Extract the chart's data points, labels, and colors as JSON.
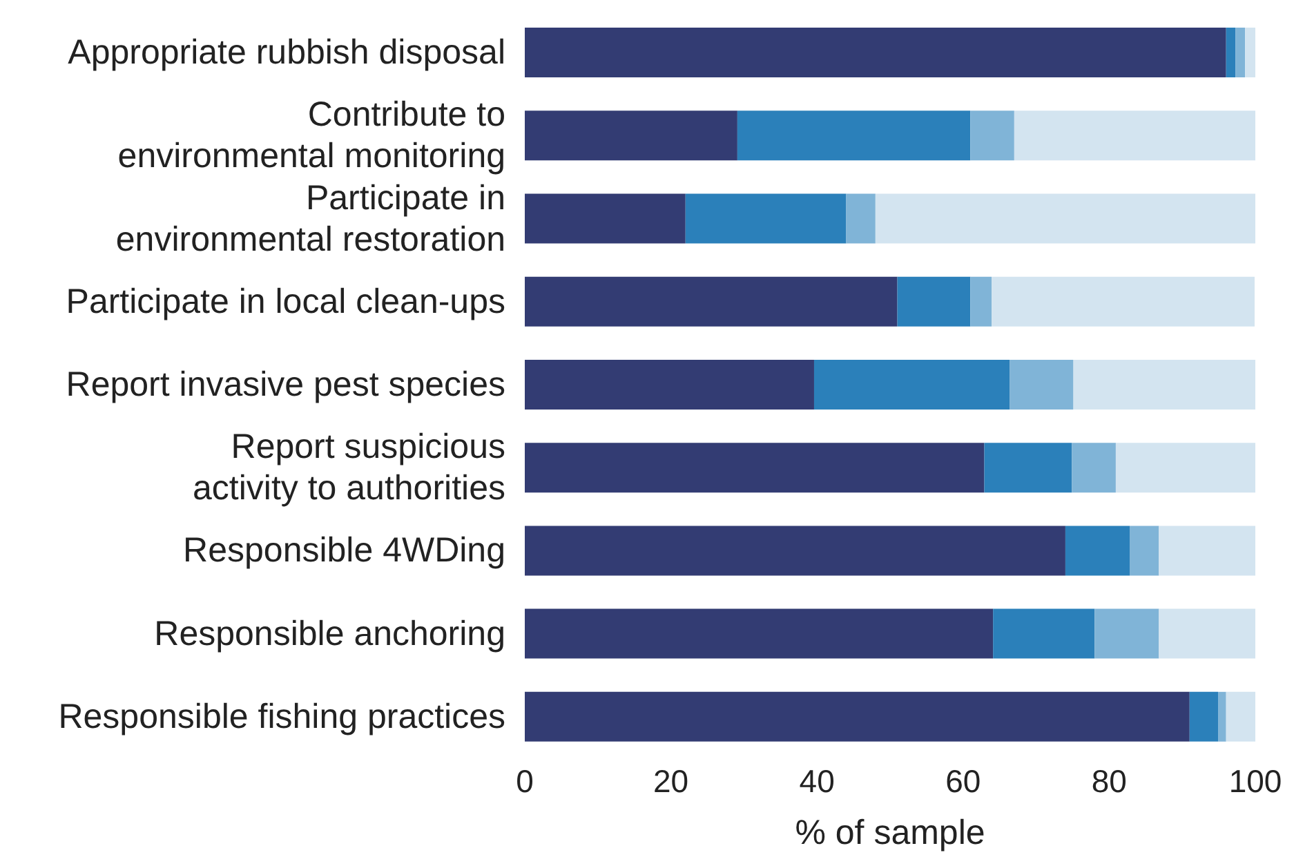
{
  "chart_data": {
    "type": "bar",
    "orientation": "horizontal",
    "stacked": true,
    "xlabel": "% of sample",
    "categories": [
      "Appropriate rubbish disposal",
      "Contribute to\nenvironmental monitoring",
      "Participate in\nenvironmental restoration",
      "Participate in local clean-ups",
      "Report invasive pest species",
      "Report suspicious\nactivity to authorities",
      "Responsible 4WDing",
      "Responsible anchoring",
      "Responsible fishing practices"
    ],
    "series": [
      {
        "color": "#333c73",
        "values": [
          96,
          29.1,
          22,
          51,
          39.6,
          62.9,
          74,
          64.1,
          91
        ]
      },
      {
        "color": "#2b80ba",
        "values": [
          1.3,
          31.9,
          22,
          10,
          26.8,
          12,
          8.8,
          13.9,
          3.9
        ]
      },
      {
        "color": "#80b4d7",
        "values": [
          1.3,
          6,
          4,
          2.9,
          8.7,
          6,
          4,
          8.8,
          1.1
        ]
      },
      {
        "color": "#d3e4f0",
        "values": [
          1.4,
          33,
          52,
          36,
          24.9,
          19.1,
          13.2,
          13.2,
          4
        ]
      }
    ],
    "xlim": [
      0,
      100
    ],
    "xticks": [
      0,
      20,
      40,
      60,
      80,
      100
    ],
    "grid": false,
    "legend": false
  }
}
